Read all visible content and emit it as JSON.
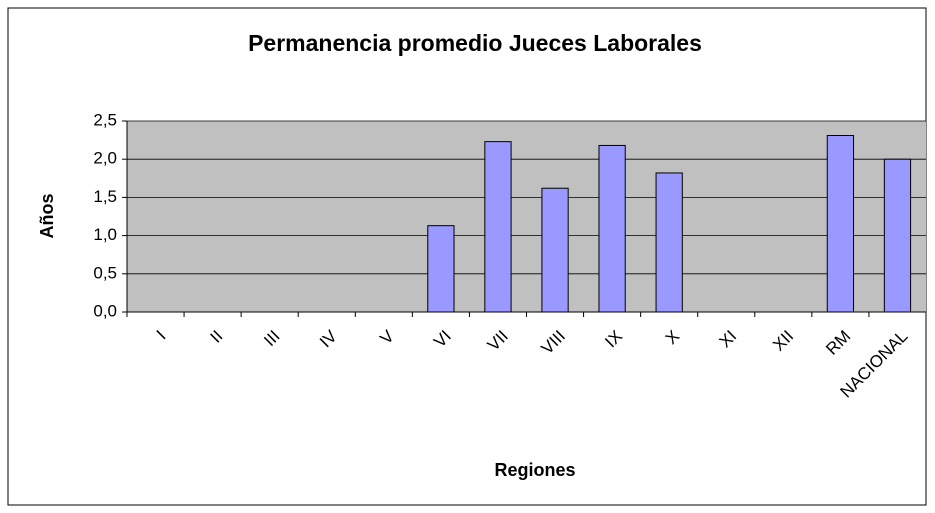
{
  "chart_data": {
    "type": "bar",
    "title": "Permanencia promedio Jueces Laborales",
    "x_label": "Regiones",
    "y_label": "Años",
    "categories": [
      "I",
      "II",
      "III",
      "IV",
      "V",
      "VI",
      "VII",
      "VIII",
      "IX",
      "X",
      "XI",
      "XII",
      "RM",
      "NACIONAL"
    ],
    "values": [
      null,
      null,
      null,
      null,
      null,
      1.13,
      2.23,
      1.62,
      2.18,
      1.82,
      null,
      null,
      2.31,
      2.0
    ],
    "color": "#9999ff",
    "ylim": [
      0,
      2.5
    ],
    "yticks": [
      {
        "value": 0,
        "label": "0,0"
      },
      {
        "value": 0.5,
        "label": "0,5"
      },
      {
        "value": 1,
        "label": "1,0"
      },
      {
        "value": 1.5,
        "label": "1,5"
      },
      {
        "value": 2,
        "label": "2,0"
      },
      {
        "value": 2.5,
        "label": "2,5"
      }
    ],
    "grid": true
  }
}
